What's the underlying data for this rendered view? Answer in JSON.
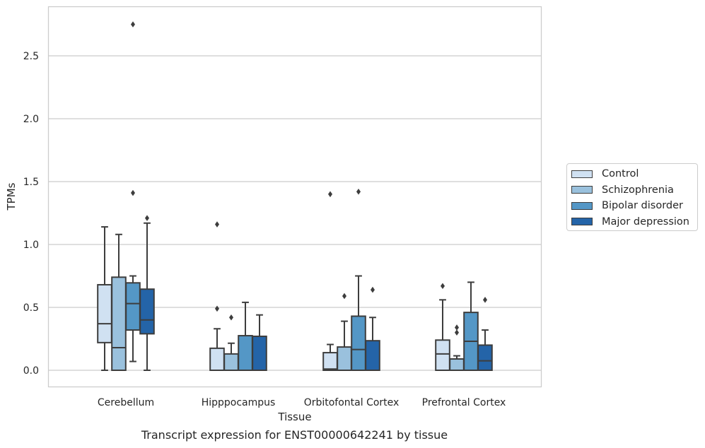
{
  "chart_data": {
    "type": "box",
    "xlabel": "Tissue",
    "ylabel": "TPMs",
    "ylim": [
      -0.13,
      2.9
    ],
    "yticks": [
      0.0,
      0.5,
      1.0,
      1.5,
      2.0,
      2.5
    ],
    "ytick_labels": [
      "0.0",
      "0.5",
      "1.0",
      "1.5",
      "2.0",
      "2.5"
    ],
    "grid": "horizontal",
    "legend_position": "right",
    "categories": [
      "Cerebellum",
      "Hipppocampus",
      "Orbitofontal Cortex",
      "Prefrontal Cortex"
    ],
    "series": [
      {
        "name": "Control",
        "color": "#d0e1f2",
        "boxes": [
          {
            "whislo": 0.0,
            "q1": 0.22,
            "med": 0.37,
            "q3": 0.68,
            "whishi": 1.14,
            "fliers": []
          },
          {
            "whislo": 0.0,
            "q1": 0.0,
            "med": 0.0,
            "q3": 0.175,
            "whishi": 0.33,
            "fliers": [
              0.49,
              1.16
            ]
          },
          {
            "whislo": 0.0,
            "q1": 0.0,
            "med": 0.01,
            "q3": 0.14,
            "whishi": 0.205,
            "fliers": [
              1.4
            ]
          },
          {
            "whislo": 0.0,
            "q1": 0.0,
            "med": 0.13,
            "q3": 0.24,
            "whishi": 0.56,
            "fliers": [
              0.67
            ]
          }
        ]
      },
      {
        "name": "Schizophrenia",
        "color": "#9ac1dd",
        "boxes": [
          {
            "whislo": 0.0,
            "q1": 0.0,
            "med": 0.18,
            "q3": 0.74,
            "whishi": 1.08,
            "fliers": []
          },
          {
            "whislo": 0.0,
            "q1": 0.0,
            "med": 0.0,
            "q3": 0.13,
            "whishi": 0.215,
            "fliers": [
              0.42
            ]
          },
          {
            "whislo": 0.0,
            "q1": 0.0,
            "med": 0.0,
            "q3": 0.185,
            "whishi": 0.39,
            "fliers": [
              0.59
            ]
          },
          {
            "whislo": 0.0,
            "q1": 0.0,
            "med": 0.0,
            "q3": 0.09,
            "whishi": 0.115,
            "fliers": [
              0.3,
              0.34
            ]
          }
        ]
      },
      {
        "name": "Bipolar disorder",
        "color": "#5497c6",
        "boxes": [
          {
            "whislo": 0.07,
            "q1": 0.32,
            "med": 0.53,
            "q3": 0.695,
            "whishi": 0.75,
            "fliers": [
              1.41,
              2.75
            ]
          },
          {
            "whislo": 0.0,
            "q1": 0.0,
            "med": 0.0,
            "q3": 0.275,
            "whishi": 0.54,
            "fliers": []
          },
          {
            "whislo": 0.0,
            "q1": 0.0,
            "med": 0.165,
            "q3": 0.43,
            "whishi": 0.75,
            "fliers": [
              1.42
            ]
          },
          {
            "whislo": 0.0,
            "q1": 0.0,
            "med": 0.23,
            "q3": 0.46,
            "whishi": 0.7,
            "fliers": []
          }
        ]
      },
      {
        "name": "Major depression",
        "color": "#2464a8",
        "boxes": [
          {
            "whislo": 0.0,
            "q1": 0.29,
            "med": 0.4,
            "q3": 0.645,
            "whishi": 1.17,
            "fliers": [
              1.21
            ]
          },
          {
            "whislo": 0.0,
            "q1": 0.0,
            "med": 0.0,
            "q3": 0.27,
            "whishi": 0.44,
            "fliers": []
          },
          {
            "whislo": 0.0,
            "q1": 0.0,
            "med": 0.0,
            "q3": 0.235,
            "whishi": 0.42,
            "fliers": [
              0.64
            ]
          },
          {
            "whislo": 0.0,
            "q1": 0.0,
            "med": 0.075,
            "q3": 0.2,
            "whishi": 0.32,
            "fliers": [
              0.56
            ]
          }
        ]
      }
    ]
  },
  "caption": "Transcript expression for ENST00000642241 by tissue"
}
